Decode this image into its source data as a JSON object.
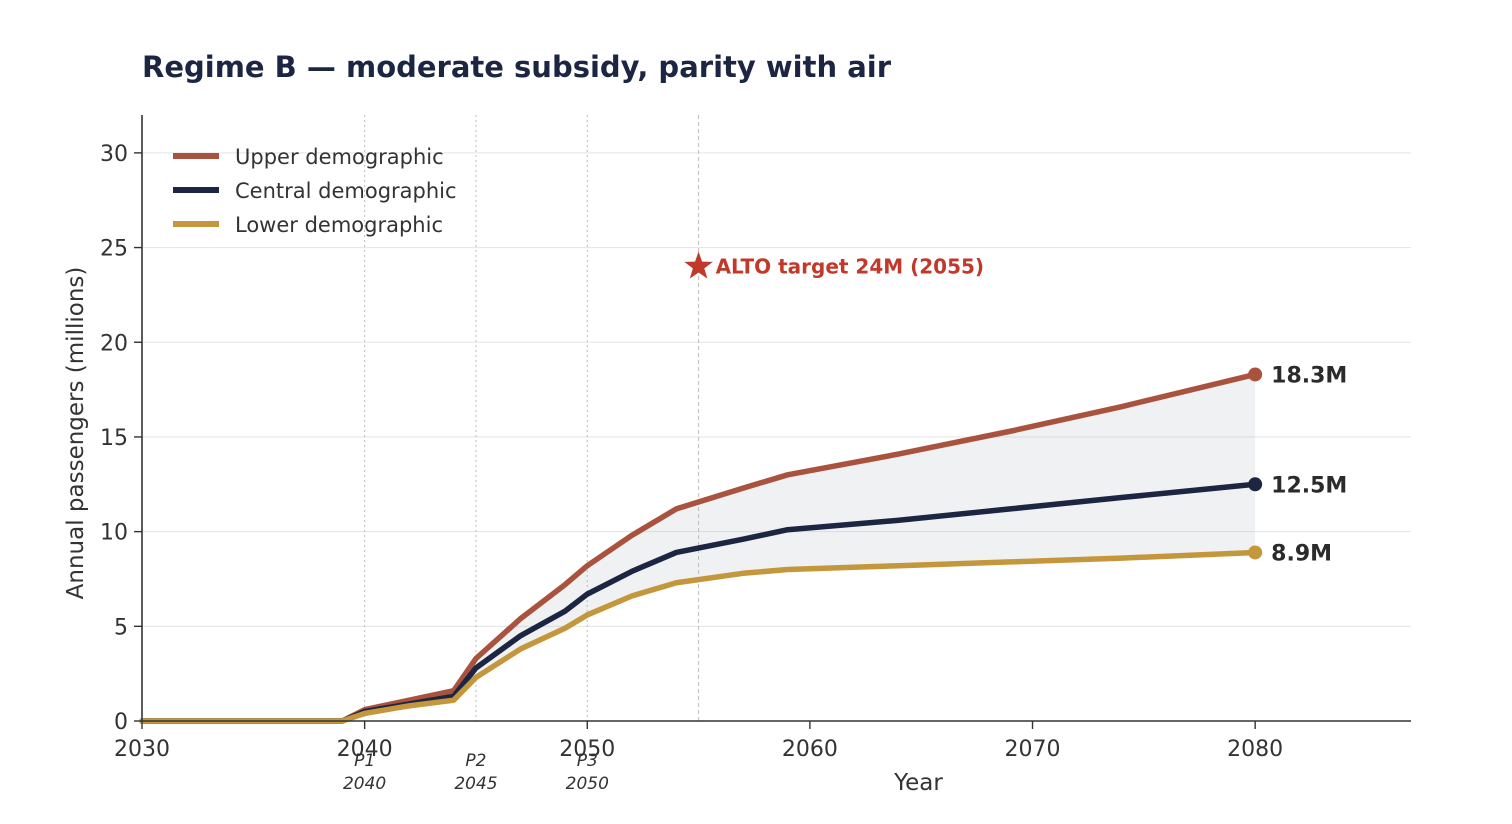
{
  "chart_data": {
    "type": "line",
    "title": "Regime B — moderate subsidy, parity with air",
    "xlabel": "Year",
    "ylabel": "Annual passengers (millions)",
    "xlim": [
      2030,
      2087
    ],
    "ylim": [
      0,
      32
    ],
    "x_ticks": [
      "2030",
      "2040",
      "2050",
      "2060",
      "2070",
      "2080"
    ],
    "y_ticks": [
      "0",
      "5",
      "10",
      "15",
      "20",
      "25",
      "30"
    ],
    "grid": "horizontal",
    "legend_position": "top-left",
    "phases": [
      {
        "label": "P1",
        "year": 2040
      },
      {
        "label": "P2",
        "year": 2045
      },
      {
        "label": "P3",
        "year": 2050
      }
    ],
    "phase_year_labels": [
      "2040",
      "2045",
      "2050"
    ],
    "target": {
      "year": 2055,
      "value": 24,
      "label": "ALTO target  24M (2055)",
      "color": "#c0392b"
    },
    "band_between": [
      "Lower demographic",
      "Upper demographic"
    ],
    "series": [
      {
        "name": "Upper demographic",
        "color": "#a9533e",
        "end_label": "18.3M",
        "points": [
          [
            2030,
            0
          ],
          [
            2039,
            0
          ],
          [
            2040,
            0.6
          ],
          [
            2042,
            1.1
          ],
          [
            2044,
            1.6
          ],
          [
            2045,
            3.3
          ],
          [
            2047,
            5.4
          ],
          [
            2049,
            7.2
          ],
          [
            2050,
            8.2
          ],
          [
            2052,
            9.8
          ],
          [
            2054,
            11.2
          ],
          [
            2057,
            12.3
          ],
          [
            2059,
            13.0
          ],
          [
            2064,
            14.1
          ],
          [
            2069,
            15.3
          ],
          [
            2074,
            16.6
          ],
          [
            2080,
            18.3
          ]
        ]
      },
      {
        "name": "Central demographic",
        "color": "#1c2643",
        "end_label": "12.5M",
        "points": [
          [
            2030,
            0
          ],
          [
            2039,
            0
          ],
          [
            2040,
            0.5
          ],
          [
            2042,
            0.9
          ],
          [
            2044,
            1.3
          ],
          [
            2045,
            2.8
          ],
          [
            2047,
            4.5
          ],
          [
            2049,
            5.8
          ],
          [
            2050,
            6.7
          ],
          [
            2052,
            7.9
          ],
          [
            2054,
            8.9
          ],
          [
            2057,
            9.6
          ],
          [
            2059,
            10.1
          ],
          [
            2064,
            10.6
          ],
          [
            2069,
            11.2
          ],
          [
            2074,
            11.8
          ],
          [
            2080,
            12.5
          ]
        ]
      },
      {
        "name": "Lower demographic",
        "color": "#c4973c",
        "end_label": "8.9M",
        "points": [
          [
            2030,
            0
          ],
          [
            2039,
            0
          ],
          [
            2040,
            0.4
          ],
          [
            2042,
            0.8
          ],
          [
            2044,
            1.1
          ],
          [
            2045,
            2.3
          ],
          [
            2047,
            3.8
          ],
          [
            2049,
            4.9
          ],
          [
            2050,
            5.6
          ],
          [
            2052,
            6.6
          ],
          [
            2054,
            7.3
          ],
          [
            2057,
            7.8
          ],
          [
            2059,
            8.0
          ],
          [
            2064,
            8.2
          ],
          [
            2069,
            8.4
          ],
          [
            2074,
            8.6
          ],
          [
            2080,
            8.9
          ]
        ]
      }
    ]
  }
}
